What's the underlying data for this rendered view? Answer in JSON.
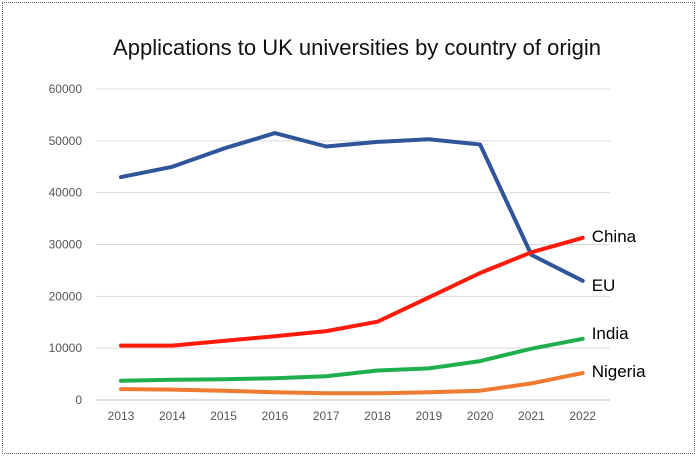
{
  "chart_data": {
    "type": "line",
    "title": "Applications to UK universities by country of origin",
    "xlabel": "",
    "ylabel": "",
    "x": [
      "2013",
      "2014",
      "2015",
      "2016",
      "2017",
      "2018",
      "2019",
      "2020",
      "2021",
      "2022"
    ],
    "ylim": [
      0,
      60000
    ],
    "yticks": [
      "0",
      "10000",
      "20000",
      "30000",
      "40000",
      "50000",
      "60000"
    ],
    "grid": true,
    "legend": "direct labels at line ends",
    "series": [
      {
        "name": "EU",
        "color": "#2f559a",
        "values": [
          43000,
          45000,
          48500,
          51500,
          48900,
          49800,
          50300,
          49300,
          28000,
          23000
        ]
      },
      {
        "name": "China",
        "color": "#ff1a0a",
        "values": [
          10500,
          10500,
          11400,
          12300,
          13300,
          15100,
          19800,
          24500,
          28500,
          31300
        ]
      },
      {
        "name": "India",
        "color": "#1fb04d",
        "values": [
          3700,
          3900,
          4000,
          4200,
          4600,
          5700,
          6100,
          7500,
          9900,
          11800
        ]
      },
      {
        "name": "Nigeria",
        "color": "#ee7b2f",
        "values": [
          2100,
          2000,
          1800,
          1500,
          1300,
          1300,
          1500,
          1800,
          3200,
          5200
        ]
      }
    ]
  }
}
